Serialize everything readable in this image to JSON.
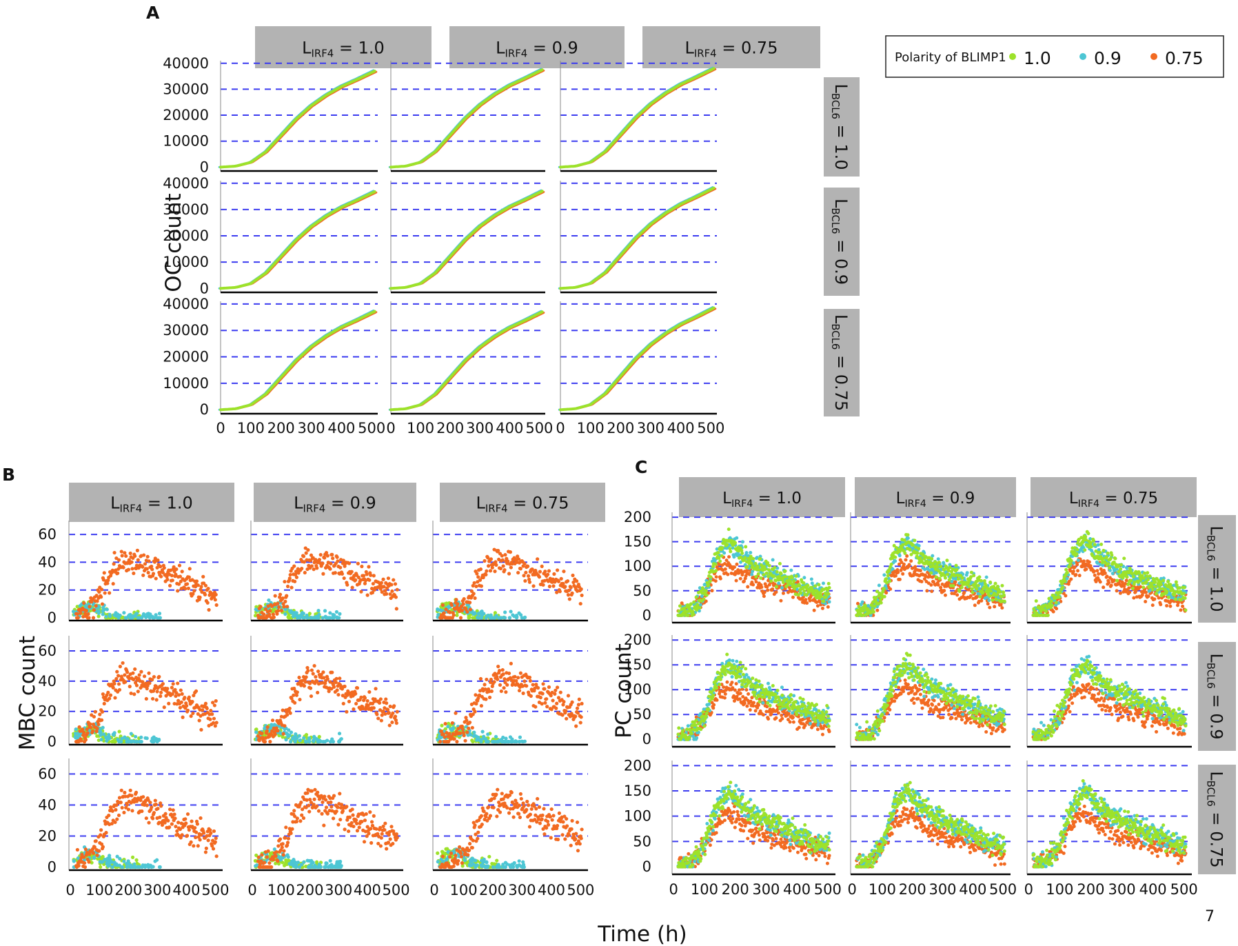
{
  "colors": {
    "series_1_0": "#9de22a",
    "series_0_9": "#4dc6d4",
    "series_0_75": "#f26a21",
    "gridline": "#3b3bf0",
    "strip": "#b3b3b3"
  },
  "page_number": "7",
  "shared_xlabel": "Time (h)",
  "legend": {
    "title": "Polarity of BLIMP1",
    "entries": [
      {
        "label": "1.0",
        "color": "#9de22a"
      },
      {
        "label": "0.9",
        "color": "#4dc6d4"
      },
      {
        "label": "0.75",
        "color": "#f26a21"
      }
    ]
  },
  "panel_labels": {
    "A": "A",
    "B": "B",
    "C": "C"
  },
  "col_strips": [
    {
      "prefix": "L",
      "sub": "IRF4",
      "value": " = 1.0"
    },
    {
      "prefix": "L",
      "sub": "IRF4",
      "value": " = 0.9"
    },
    {
      "prefix": "L",
      "sub": "IRF4",
      "value": " = 0.75"
    }
  ],
  "row_strips": [
    {
      "prefix": "L",
      "sub": "BCL6",
      "value": " = 1.0"
    },
    {
      "prefix": "L",
      "sub": "BCL6",
      "value": " = 0.9"
    },
    {
      "prefix": "L",
      "sub": "BCL6",
      "value": " = 0.75"
    }
  ],
  "chart_data": [
    {
      "id": "A",
      "type": "line",
      "ylabel": "OC count",
      "xlabel": "Time (h)",
      "xlim": [
        0,
        520
      ],
      "ylim": [
        -1500,
        41000
      ],
      "x_ticks": [
        0,
        100,
        200,
        300,
        400,
        500
      ],
      "y_ticks": [
        0,
        10000,
        20000,
        30000,
        40000
      ],
      "series_names": [
        "1.0",
        "0.9",
        "0.75"
      ],
      "description_of_curves": "sigmoid growth from ~0 at t=0 to ~37000-38500 at t=510 in every facet; all three polarity series nearly overlap",
      "facets": [
        {
          "irf4": "1.0",
          "bcl6": "1.0",
          "end_value": 37000
        },
        {
          "irf4": "0.9",
          "bcl6": "1.0",
          "end_value": 37500
        },
        {
          "irf4": "0.75",
          "bcl6": "1.0",
          "end_value": 38000
        },
        {
          "irf4": "1.0",
          "bcl6": "0.9",
          "end_value": 36800
        },
        {
          "irf4": "0.9",
          "bcl6": "0.9",
          "end_value": 37000
        },
        {
          "irf4": "0.75",
          "bcl6": "0.9",
          "end_value": 38200
        },
        {
          "irf4": "1.0",
          "bcl6": "0.75",
          "end_value": 37200
        },
        {
          "irf4": "0.9",
          "bcl6": "0.75",
          "end_value": 37000
        },
        {
          "irf4": "0.75",
          "bcl6": "0.75",
          "end_value": 38500
        }
      ],
      "series_points": {
        "x": [
          0,
          50,
          100,
          150,
          200,
          250,
          300,
          350,
          400,
          450,
          510
        ],
        "fraction_of_end": [
          0.0,
          0.01,
          0.05,
          0.16,
          0.33,
          0.5,
          0.64,
          0.75,
          0.84,
          0.91,
          1.0
        ]
      }
    },
    {
      "id": "B",
      "type": "scatter",
      "ylabel": "MBC count",
      "xlabel": "Time (h)",
      "xlim": [
        -5,
        525
      ],
      "ylim": [
        -2,
        70
      ],
      "x_ticks": [
        0,
        100,
        200,
        300,
        400,
        500
      ],
      "y_ticks": [
        0,
        20,
        40,
        60
      ],
      "series": [
        {
          "name": "1.0",
          "shape": "peak ~8-10 at t≈50-70, decays to ~0 by t≈250"
        },
        {
          "name": "0.9",
          "shape": "peak ~10 at t≈60-90, decays to ~0 by t≈300"
        },
        {
          "name": "0.75",
          "shape": "rises from ~0 at t=30 to ~40-45 peak at t≈170-220, declines to ~17 at t=500"
        }
      ],
      "mean_curve_0_75": {
        "x": [
          20,
          60,
          100,
          140,
          180,
          220,
          260,
          300,
          340,
          380,
          420,
          460,
          500
        ],
        "y": [
          1,
          6,
          15,
          34,
          42,
          41,
          39,
          35,
          31,
          27,
          24,
          20,
          17
        ]
      }
    },
    {
      "id": "C",
      "type": "scatter",
      "ylabel": "PC count",
      "xlabel": "Time (h)",
      "xlim": [
        -5,
        525
      ],
      "ylim": [
        -15,
        210
      ],
      "x_ticks": [
        0,
        100,
        200,
        300,
        400,
        500
      ],
      "y_ticks": [
        0,
        50,
        100,
        150,
        200
      ],
      "series": [
        {
          "name": "1.0",
          "shape": "rise to ~150-160 peak at t≈180, decays to ~40 at t=500"
        },
        {
          "name": "0.9",
          "shape": "rise to ~150 peak at t≈185, decays to ~40 at t=500"
        },
        {
          "name": "0.75",
          "shape": "rise to ~100-110 peak at t≈180, decays to ~25-30 at t=500"
        }
      ],
      "mean_curve_1_0": {
        "x": [
          20,
          60,
          100,
          140,
          180,
          220,
          260,
          300,
          350,
          400,
          450,
          500
        ],
        "y": [
          2,
          10,
          45,
          120,
          152,
          125,
          105,
          92,
          78,
          65,
          52,
          40
        ]
      },
      "mean_curve_0_75": {
        "x": [
          20,
          60,
          100,
          140,
          180,
          220,
          260,
          300,
          350,
          400,
          450,
          500
        ],
        "y": [
          1,
          8,
          40,
          88,
          105,
          85,
          72,
          62,
          52,
          44,
          35,
          27
        ]
      }
    }
  ]
}
